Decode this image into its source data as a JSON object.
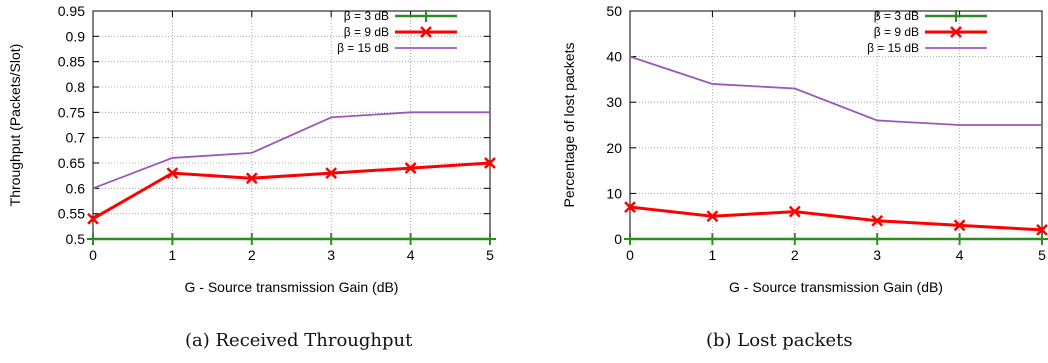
{
  "chart_data": [
    {
      "type": "line",
      "caption": "(a) Received Throughput",
      "xlabel": "G - Source transmission Gain (dB)",
      "ylabel": "Throughput (Packets/Slot)",
      "x": [
        0,
        1,
        2,
        3,
        4,
        5
      ],
      "xlim": [
        0,
        5
      ],
      "ylim": [
        0.5,
        0.95
      ],
      "xticks": [
        "0",
        "1",
        "2",
        "3",
        "4",
        "5"
      ],
      "yticks": [
        "0.5",
        "0.55",
        "0.6",
        "0.65",
        "0.7",
        "0.75",
        "0.8",
        "0.85",
        "0.9",
        "0.95"
      ],
      "ytick_values": [
        0.5,
        0.55,
        0.6,
        0.65,
        0.7,
        0.75,
        0.8,
        0.85,
        0.9,
        0.95
      ],
      "grid": true,
      "legend_position": "top-right",
      "series": [
        {
          "name": "β = 3 dB",
          "color": "#2e8b22",
          "marker": "plus",
          "values": [
            0.5,
            0.5,
            0.5,
            0.5,
            0.5,
            0.5
          ]
        },
        {
          "name": "β = 9 dB",
          "color": "#ff0000",
          "marker": "cross",
          "values": [
            0.54,
            0.63,
            0.62,
            0.63,
            0.64,
            0.65
          ]
        },
        {
          "name": "β = 15 dB",
          "color": "#9b59b6",
          "marker": "none",
          "values": [
            0.6,
            0.66,
            0.67,
            0.74,
            0.75,
            0.75
          ]
        }
      ]
    },
    {
      "type": "line",
      "caption": "(b) Lost packets",
      "xlabel": "G - Source transmission Gain (dB)",
      "ylabel": "Percentage of lost packets",
      "x": [
        0,
        1,
        2,
        3,
        4,
        5
      ],
      "xlim": [
        0,
        5
      ],
      "ylim": [
        0,
        50
      ],
      "xticks": [
        "0",
        "1",
        "2",
        "3",
        "4",
        "5"
      ],
      "yticks": [
        "0",
        "10",
        "20",
        "30",
        "40",
        "50"
      ],
      "ytick_values": [
        0,
        10,
        20,
        30,
        40,
        50
      ],
      "grid": true,
      "legend_position": "top-right",
      "series": [
        {
          "name": "β = 3 dB",
          "color": "#2e8b22",
          "marker": "plus",
          "values": [
            0,
            0,
            0,
            0,
            0,
            0
          ]
        },
        {
          "name": "β = 9 dB",
          "color": "#ff0000",
          "marker": "cross",
          "values": [
            7,
            5,
            6,
            4,
            3,
            2
          ]
        },
        {
          "name": "β = 15 dB",
          "color": "#9b59b6",
          "marker": "none",
          "values": [
            40,
            34,
            33,
            26,
            25,
            25
          ]
        }
      ]
    }
  ]
}
